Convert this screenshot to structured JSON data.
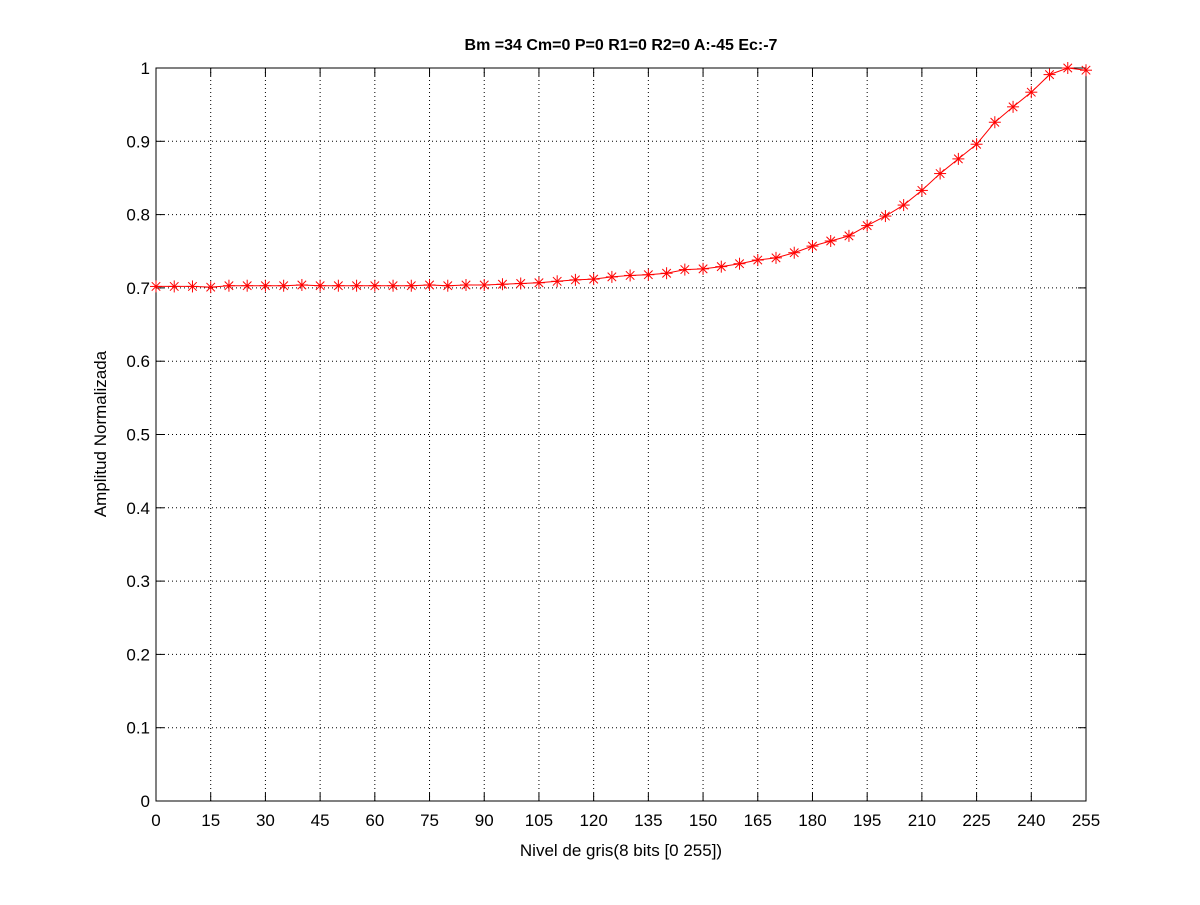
{
  "chart_data": {
    "type": "line",
    "title": "Bm =34  Cm=0  P=0  R1=0  R2=0  A:-45  Ec:-7",
    "xlabel": "Nivel de gris(8 bits [0 255])",
    "ylabel": "Amplitud Normalizada",
    "xlim": [
      0,
      255
    ],
    "ylim": [
      0,
      1
    ],
    "xticks": [
      "0",
      "15",
      "30",
      "45",
      "60",
      "75",
      "90",
      "105",
      "120",
      "135",
      "150",
      "165",
      "180",
      "195",
      "210",
      "225",
      "240",
      "255"
    ],
    "yticks": [
      "0",
      "0.1",
      "0.2",
      "0.3",
      "0.4",
      "0.5",
      "0.6",
      "0.7",
      "0.8",
      "0.9",
      "1"
    ],
    "grid": true,
    "marker": "asterisk",
    "line_color": "#ff0000",
    "marker_color": "#ff0000",
    "x": [
      0,
      5,
      10,
      15,
      20,
      25,
      30,
      35,
      40,
      45,
      50,
      55,
      60,
      65,
      70,
      75,
      80,
      85,
      90,
      95,
      100,
      105,
      110,
      115,
      120,
      125,
      130,
      135,
      140,
      145,
      150,
      155,
      160,
      165,
      170,
      175,
      180,
      185,
      190,
      195,
      200,
      205,
      210,
      215,
      220,
      225,
      230,
      235,
      240,
      245,
      250,
      255
    ],
    "y": [
      0.702,
      0.702,
      0.702,
      0.701,
      0.703,
      0.703,
      0.703,
      0.703,
      0.704,
      0.703,
      0.703,
      0.703,
      0.703,
      0.703,
      0.703,
      0.704,
      0.703,
      0.704,
      0.704,
      0.705,
      0.706,
      0.707,
      0.709,
      0.711,
      0.712,
      0.715,
      0.717,
      0.718,
      0.72,
      0.725,
      0.726,
      0.729,
      0.733,
      0.738,
      0.741,
      0.748,
      0.757,
      0.764,
      0.771,
      0.785,
      0.798,
      0.813,
      0.833,
      0.856,
      0.876,
      0.896,
      0.926,
      0.947,
      0.967,
      0.991,
      1.0,
      0.997
    ]
  }
}
